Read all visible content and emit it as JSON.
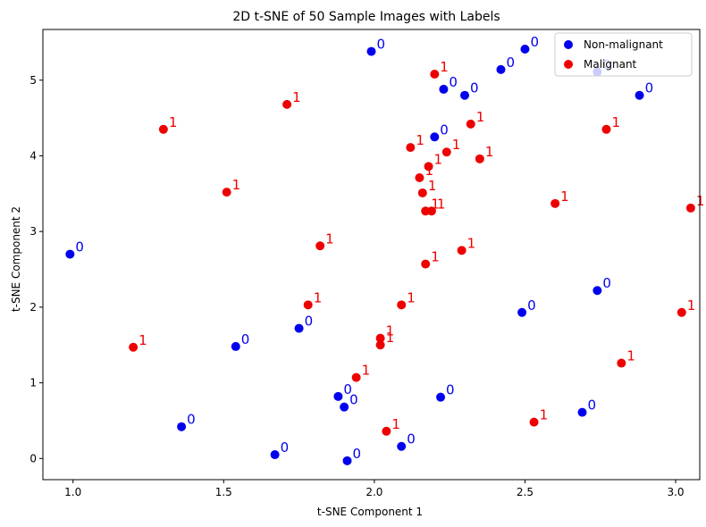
{
  "colors": {
    "non_malignant": "#0000ee",
    "malignant": "#ee0000",
    "axis": "#000000",
    "legend_border": "#cccccc"
  },
  "chart_data": {
    "type": "scatter",
    "title": "2D t-SNE of 50 Sample Images with Labels",
    "xlabel": "t-SNE Component 1",
    "ylabel": "t-SNE Component 2",
    "xlim": [
      0.9,
      3.08
    ],
    "ylim": [
      -0.28,
      5.67
    ],
    "xticks": [
      "1.0",
      "1.5",
      "2.0",
      "2.5",
      "3.0"
    ],
    "yticks": [
      "0",
      "1",
      "2",
      "3",
      "4",
      "5"
    ],
    "grid": false,
    "legend_position": "top-right",
    "series": [
      {
        "name": "Non-malignant",
        "label": "0",
        "points": [
          [
            1.99,
            5.38
          ],
          [
            2.5,
            5.41
          ],
          [
            2.42,
            5.14
          ],
          [
            2.74,
            5.11
          ],
          [
            2.23,
            4.88
          ],
          [
            2.3,
            4.8
          ],
          [
            2.88,
            4.8
          ],
          [
            2.2,
            4.25
          ],
          [
            0.99,
            2.7
          ],
          [
            2.74,
            2.22
          ],
          [
            2.49,
            1.93
          ],
          [
            1.75,
            1.72
          ],
          [
            1.54,
            1.48
          ],
          [
            1.88,
            0.82
          ],
          [
            1.9,
            0.68
          ],
          [
            2.22,
            0.81
          ],
          [
            2.69,
            0.61
          ],
          [
            1.36,
            0.42
          ],
          [
            1.67,
            0.05
          ],
          [
            2.09,
            0.16
          ],
          [
            1.91,
            -0.03
          ]
        ]
      },
      {
        "name": "Malignant",
        "label": "1",
        "points": [
          [
            2.2,
            5.08
          ],
          [
            1.71,
            4.68
          ],
          [
            1.3,
            4.35
          ],
          [
            2.32,
            4.42
          ],
          [
            2.77,
            4.35
          ],
          [
            2.12,
            4.11
          ],
          [
            2.24,
            4.05
          ],
          [
            2.35,
            3.96
          ],
          [
            2.18,
            3.86
          ],
          [
            2.15,
            3.71
          ],
          [
            1.51,
            3.52
          ],
          [
            2.16,
            3.51
          ],
          [
            2.6,
            3.37
          ],
          [
            2.17,
            3.27
          ],
          [
            2.19,
            3.27
          ],
          [
            3.05,
            3.31
          ],
          [
            1.82,
            2.81
          ],
          [
            2.29,
            2.75
          ],
          [
            2.17,
            2.57
          ],
          [
            1.78,
            2.03
          ],
          [
            2.09,
            2.03
          ],
          [
            3.02,
            1.93
          ],
          [
            2.02,
            1.59
          ],
          [
            2.02,
            1.5
          ],
          [
            1.2,
            1.47
          ],
          [
            2.82,
            1.26
          ],
          [
            1.94,
            1.07
          ],
          [
            2.53,
            0.48
          ],
          [
            2.04,
            0.36
          ]
        ]
      }
    ]
  }
}
